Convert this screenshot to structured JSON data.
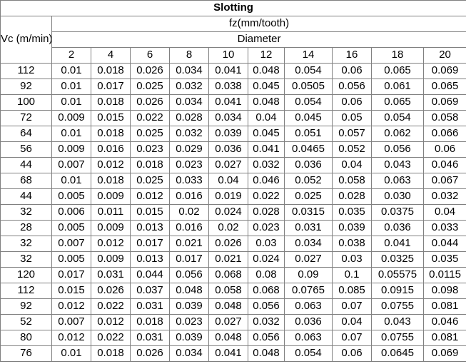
{
  "chart_data": {
    "type": "table",
    "title": "Slotting",
    "row_header_label": "Vc (m/min)",
    "col_group_header": "fz(mm/tooth)",
    "col_subgroup_header": "Diameter",
    "columns": [
      "2",
      "4",
      "6",
      "8",
      "10",
      "12",
      "14",
      "16",
      "18",
      "20"
    ],
    "rows": [
      {
        "vc": "112",
        "values": [
          "0.01",
          "0.018",
          "0.026",
          "0.034",
          "0.041",
          "0.048",
          "0.054",
          "0.06",
          "0.065",
          "0.069"
        ]
      },
      {
        "vc": "92",
        "values": [
          "0.01",
          "0.017",
          "0.025",
          "0.032",
          "0.038",
          "0.045",
          "0.0505",
          "0.056",
          "0.061",
          "0.065"
        ]
      },
      {
        "vc": "100",
        "values": [
          "0.01",
          "0.018",
          "0.026",
          "0.034",
          "0.041",
          "0.048",
          "0.054",
          "0.06",
          "0.065",
          "0.069"
        ]
      },
      {
        "vc": "72",
        "values": [
          "0.009",
          "0.015",
          "0.022",
          "0.028",
          "0.034",
          "0.04",
          "0.045",
          "0.05",
          "0.054",
          "0.058"
        ]
      },
      {
        "vc": "64",
        "values": [
          "0.01",
          "0.018",
          "0.025",
          "0.032",
          "0.039",
          "0.045",
          "0.051",
          "0.057",
          "0.062",
          "0.066"
        ]
      },
      {
        "vc": "56",
        "values": [
          "0.009",
          "0.016",
          "0.023",
          "0.029",
          "0.036",
          "0.041",
          "0.0465",
          "0.052",
          "0.056",
          "0.06"
        ]
      },
      {
        "vc": "44",
        "values": [
          "0.007",
          "0.012",
          "0.018",
          "0.023",
          "0.027",
          "0.032",
          "0.036",
          "0.04",
          "0.043",
          "0.046"
        ]
      },
      {
        "vc": "68",
        "values": [
          "0.01",
          "0.018",
          "0.025",
          "0.033",
          "0.04",
          "0.046",
          "0.052",
          "0.058",
          "0.063",
          "0.067"
        ]
      },
      {
        "vc": "44",
        "values": [
          "0.005",
          "0.009",
          "0.012",
          "0.016",
          "0.019",
          "0.022",
          "0.025",
          "0.028",
          "0.030",
          "0.032"
        ]
      },
      {
        "vc": "32",
        "values": [
          "0.006",
          "0.011",
          "0.015",
          "0.02",
          "0.024",
          "0.028",
          "0.0315",
          "0.035",
          "0.0375",
          "0.04"
        ]
      },
      {
        "vc": "28",
        "values": [
          "0.005",
          "0.009",
          "0.013",
          "0.016",
          "0.02",
          "0.023",
          "0.031",
          "0.039",
          "0.036",
          "0.033"
        ]
      },
      {
        "vc": "32",
        "values": [
          "0.007",
          "0.012",
          "0.017",
          "0.021",
          "0.026",
          "0.03",
          "0.034",
          "0.038",
          "0.041",
          "0.044"
        ]
      },
      {
        "vc": "32",
        "values": [
          "0.005",
          "0.009",
          "0.013",
          "0.017",
          "0.021",
          "0.024",
          "0.027",
          "0.03",
          "0.0325",
          "0.035"
        ]
      },
      {
        "vc": "120",
        "values": [
          "0.017",
          "0.031",
          "0.044",
          "0.056",
          "0.068",
          "0.08",
          "0.09",
          "0.1",
          "0.05575",
          "0.0115"
        ]
      },
      {
        "vc": "112",
        "values": [
          "0.015",
          "0.026",
          "0.037",
          "0.048",
          "0.058",
          "0.068",
          "0.0765",
          "0.085",
          "0.0915",
          "0.098"
        ]
      },
      {
        "vc": "92",
        "values": [
          "0.012",
          "0.022",
          "0.031",
          "0.039",
          "0.048",
          "0.056",
          "0.063",
          "0.07",
          "0.0755",
          "0.081"
        ]
      },
      {
        "vc": "52",
        "values": [
          "0.007",
          "0.012",
          "0.018",
          "0.023",
          "0.027",
          "0.032",
          "0.036",
          "0.04",
          "0.043",
          "0.046"
        ]
      },
      {
        "vc": "80",
        "values": [
          "0.012",
          "0.022",
          "0.031",
          "0.039",
          "0.048",
          "0.056",
          "0.063",
          "0.07",
          "0.0755",
          "0.081"
        ]
      },
      {
        "vc": "76",
        "values": [
          "0.01",
          "0.018",
          "0.026",
          "0.034",
          "0.041",
          "0.048",
          "0.054",
          "0.06",
          "0.0645",
          "0.069"
        ]
      }
    ]
  },
  "colors": {
    "border": "#808080",
    "text": "#000000",
    "background": "#ffffff"
  }
}
